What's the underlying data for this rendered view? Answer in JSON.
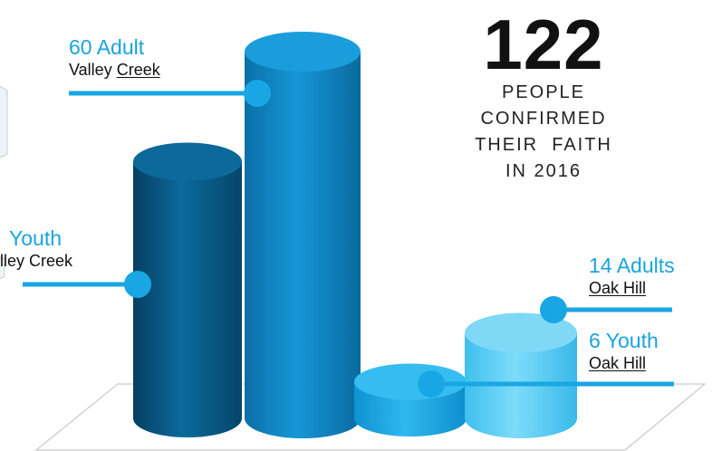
{
  "headline": {
    "number": "122",
    "lines": [
      "PEOPLE",
      "CONFIRMED",
      "THEIR  FAITH",
      "IN 2016"
    ]
  },
  "colors": {
    "valley_youth": "#0a5a86",
    "valley_adult": "#0f86c3",
    "oak_youth": "#1ba7e6",
    "oak_adults": "#5dcdf3",
    "callout": "#19a6e4"
  },
  "labels": {
    "valley_youth": {
      "count": "Youth",
      "place": "lley Creek"
    },
    "valley_adult": {
      "count": "60 Adult",
      "place_plain": "Valley ",
      "place_ul": "Creek"
    },
    "oak_adults": {
      "count": "14 Adults",
      "place": "Oak Hill"
    },
    "oak_youth": {
      "count": "6 Youth",
      "place": "Oak Hill"
    }
  },
  "chart_data": {
    "type": "bar",
    "title": "",
    "categories": [
      "Valley Creek Youth",
      "Valley Creek Adult",
      "Oak Hill Youth",
      "Oak Hill Adults"
    ],
    "values": [
      42,
      60,
      6,
      14
    ],
    "ylim": [
      0,
      70
    ],
    "grid": false,
    "legend": "none"
  }
}
